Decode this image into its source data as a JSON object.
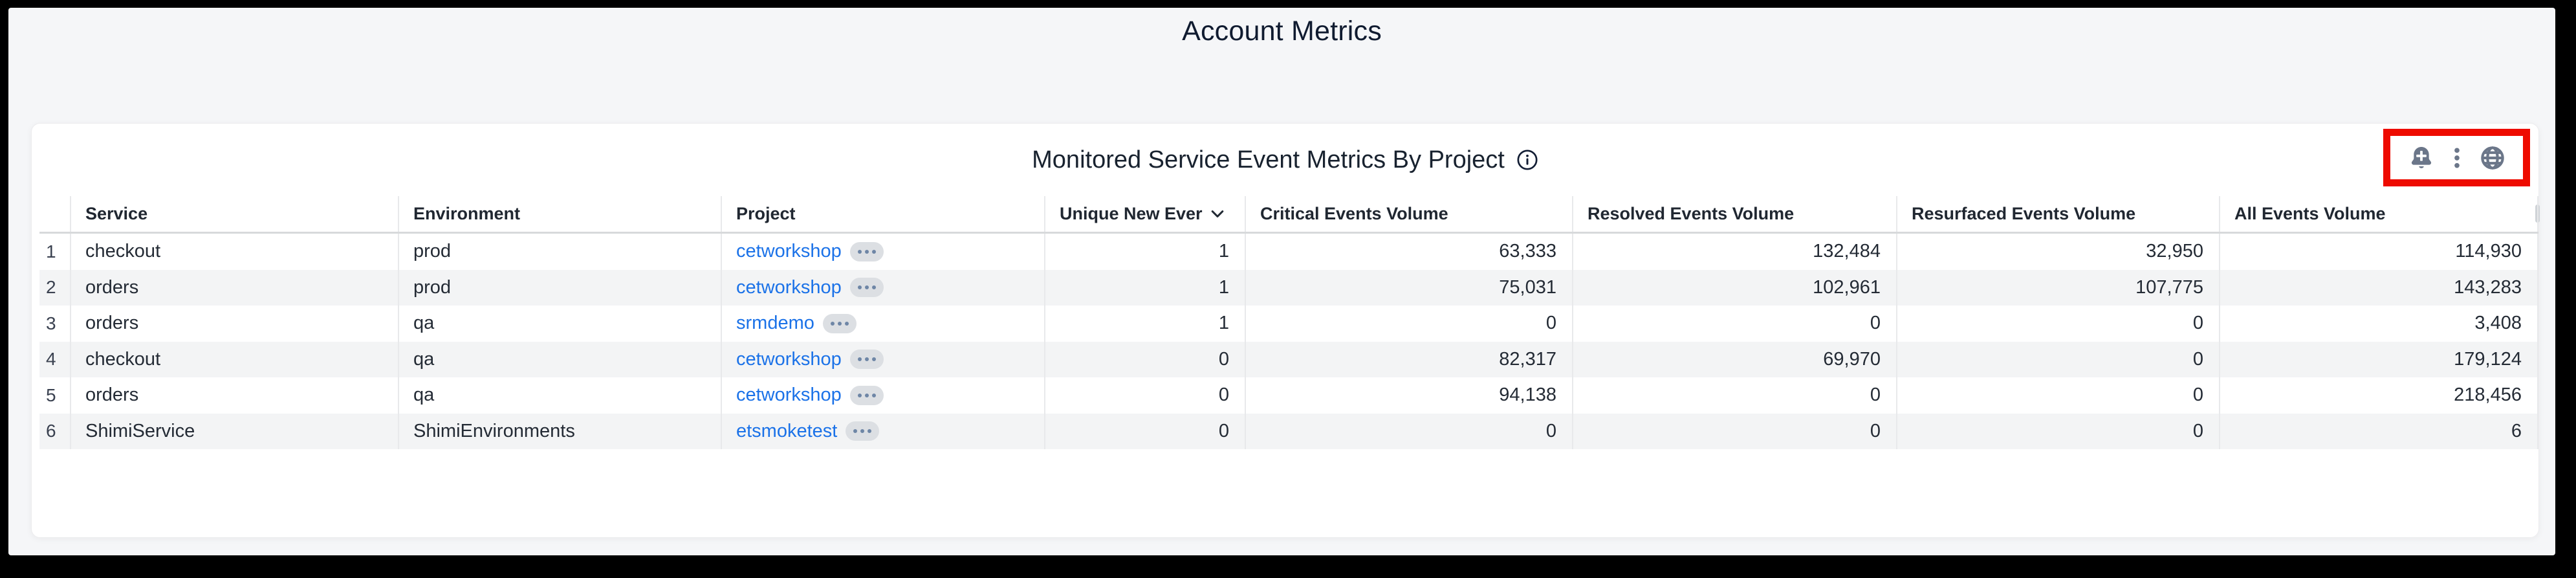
{
  "page": {
    "title": "Account Metrics"
  },
  "panel": {
    "title": "Monitored Service Event Metrics By Project",
    "info_icon": "info-circle",
    "actions": [
      {
        "icon": "bell-plus",
        "name": "add-alert"
      },
      {
        "icon": "kebab-menu",
        "name": "panel-menu"
      },
      {
        "icon": "globe",
        "name": "globe"
      }
    ],
    "highlight_color": "#ee0b00",
    "icon_color": "#6b7689"
  },
  "table": {
    "columns": [
      {
        "label": "Service",
        "type": "text"
      },
      {
        "label": "Environment",
        "type": "text"
      },
      {
        "label": "Project",
        "type": "link"
      },
      {
        "label": "Unique New Ever",
        "type": "number",
        "sorted": "desc"
      },
      {
        "label": "Critical Events Volume",
        "type": "number"
      },
      {
        "label": "Resolved Events Volume",
        "type": "number"
      },
      {
        "label": "Resurfaced Events Volume",
        "type": "number"
      },
      {
        "label": "All Events Volume",
        "type": "number"
      }
    ],
    "rows": [
      {
        "num": "1",
        "cells": [
          "checkout",
          "prod",
          "cetworkshop",
          "1",
          "63,333",
          "132,484",
          "32,950",
          "114,930"
        ]
      },
      {
        "num": "2",
        "cells": [
          "orders",
          "prod",
          "cetworkshop",
          "1",
          "75,031",
          "102,961",
          "107,775",
          "143,283"
        ]
      },
      {
        "num": "3",
        "cells": [
          "orders",
          "qa",
          "srmdemo",
          "1",
          "0",
          "0",
          "0",
          "3,408"
        ]
      },
      {
        "num": "4",
        "cells": [
          "checkout",
          "qa",
          "cetworkshop",
          "0",
          "82,317",
          "69,970",
          "0",
          "179,124"
        ]
      },
      {
        "num": "5",
        "cells": [
          "orders",
          "qa",
          "cetworkshop",
          "0",
          "94,138",
          "0",
          "0",
          "218,456"
        ]
      },
      {
        "num": "6",
        "cells": [
          "ShimiService",
          "ShimiEnvironments",
          "etsmoketest",
          "0",
          "0",
          "0",
          "0",
          "6"
        ]
      }
    ],
    "link_badge_icon": "ellipsis-pill",
    "link_color": "#1b72e8"
  }
}
